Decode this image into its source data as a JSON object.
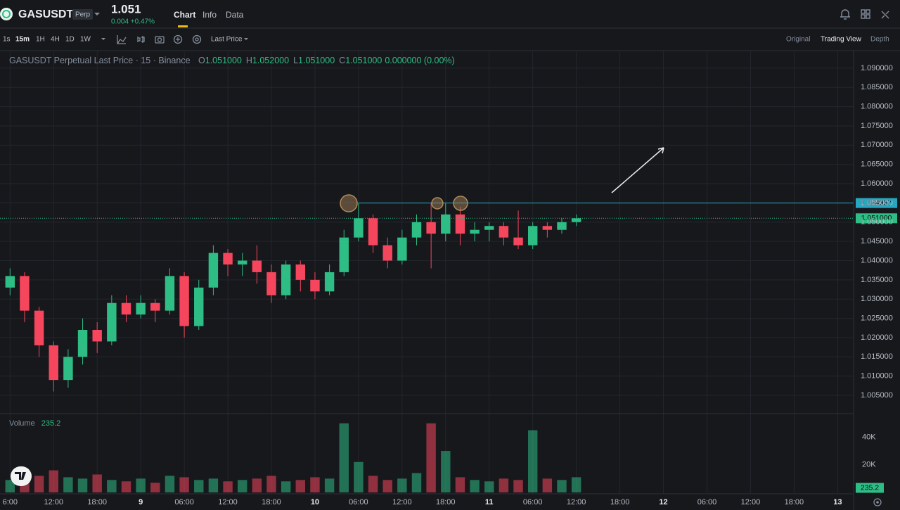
{
  "header": {
    "symbol": "GASUSDT",
    "badge": "Perp",
    "price": "1.051",
    "change": "0.004 +0.47%",
    "tabs": [
      "Chart",
      "Info",
      "Data"
    ]
  },
  "toolbar": {
    "intervals": [
      "1s",
      "15m",
      "1H",
      "4H",
      "1D",
      "1W"
    ],
    "price_type": "Last Price",
    "views": [
      "Original",
      "Trading View",
      "Depth"
    ]
  },
  "chart_data": {
    "type": "candlestick",
    "title": "GASUSDT Perpetual Last Price · 15 · Binance",
    "legend": [
      {
        "key": "O",
        "value": "1.051000"
      },
      {
        "key": "H",
        "value": "1.052000"
      },
      {
        "key": "L",
        "value": "1.051000"
      },
      {
        "key": "C",
        "value": "1.051000"
      }
    ],
    "legend_change": "0.000000 (0.00%)",
    "up_color": "#2ebd85",
    "down_color": "#f6465d",
    "grid": true,
    "x": [
      6,
      8,
      10,
      12,
      14,
      16,
      18,
      20,
      22,
      24,
      26,
      28,
      30,
      32,
      34,
      36,
      38,
      40,
      42,
      44,
      46,
      48,
      50,
      52,
      54,
      56,
      58,
      60,
      62,
      64,
      66,
      68,
      70,
      72,
      74,
      76,
      78,
      80,
      82,
      84
    ],
    "open": [
      1.033,
      1.036,
      1.027,
      1.018,
      1.009,
      1.015,
      1.022,
      1.019,
      1.029,
      1.026,
      1.029,
      1.027,
      1.036,
      1.023,
      1.033,
      1.042,
      1.039,
      1.04,
      1.037,
      1.031,
      1.039,
      1.035,
      1.032,
      1.037,
      1.046,
      1.051,
      1.044,
      1.04,
      1.046,
      1.05,
      1.047,
      1.052,
      1.047,
      1.048,
      1.049,
      1.046,
      1.044,
      1.049,
      1.048,
      1.05
    ],
    "high": [
      1.038,
      1.037,
      1.028,
      1.019,
      1.017,
      1.025,
      1.024,
      1.031,
      1.031,
      1.031,
      1.03,
      1.038,
      1.037,
      1.035,
      1.044,
      1.043,
      1.042,
      1.044,
      1.039,
      1.04,
      1.04,
      1.037,
      1.039,
      1.048,
      1.055,
      1.052,
      1.046,
      1.048,
      1.052,
      1.055,
      1.055,
      1.054,
      1.05,
      1.05,
      1.05,
      1.053,
      1.05,
      1.05,
      1.051,
      1.052
    ],
    "low": [
      1.031,
      1.024,
      1.015,
      1.006,
      1.007,
      1.013,
      1.016,
      1.018,
      1.024,
      1.025,
      1.024,
      1.026,
      1.02,
      1.022,
      1.031,
      1.036,
      1.036,
      1.034,
      1.029,
      1.03,
      1.032,
      1.03,
      1.031,
      1.036,
      1.045,
      1.042,
      1.038,
      1.039,
      1.044,
      1.038,
      1.045,
      1.044,
      1.045,
      1.045,
      1.044,
      1.043,
      1.043,
      1.046,
      1.047,
      1.049
    ],
    "close": [
      1.036,
      1.027,
      1.018,
      1.009,
      1.015,
      1.022,
      1.019,
      1.029,
      1.026,
      1.029,
      1.027,
      1.036,
      1.023,
      1.033,
      1.042,
      1.039,
      1.04,
      1.037,
      1.031,
      1.039,
      1.035,
      1.032,
      1.037,
      1.046,
      1.051,
      1.044,
      1.04,
      1.046,
      1.05,
      1.047,
      1.052,
      1.047,
      1.048,
      1.049,
      1.046,
      1.044,
      1.049,
      1.048,
      1.05,
      1.051
    ],
    "xlim": [
      5.1,
      122
    ],
    "xticks": [
      {
        "value": 6,
        "label": "6:00"
      },
      {
        "value": 12,
        "label": "12:00"
      },
      {
        "value": 18,
        "label": "18:00"
      },
      {
        "value": 24,
        "label": "9"
      },
      {
        "value": 30,
        "label": "06:00"
      },
      {
        "value": 36,
        "label": "12:00"
      },
      {
        "value": 42,
        "label": "18:00"
      },
      {
        "value": 48,
        "label": "10"
      },
      {
        "value": 54,
        "label": "06:00"
      },
      {
        "value": 60,
        "label": "12:00"
      },
      {
        "value": 66,
        "label": "18:00"
      },
      {
        "value": 72,
        "label": "11"
      },
      {
        "value": 78,
        "label": "06:00"
      },
      {
        "value": 84,
        "label": "12:00"
      },
      {
        "value": 90,
        "label": "18:00"
      },
      {
        "value": 96,
        "label": "12"
      },
      {
        "value": 102,
        "label": "06:00"
      },
      {
        "value": 108,
        "label": "12:00"
      },
      {
        "value": 114,
        "label": "18:00"
      },
      {
        "value": 120,
        "label": "13"
      }
    ],
    "ylim": [
      1.0008,
      1.094
    ],
    "yticks": [
      {
        "value": 1.005,
        "label": "1.005000"
      },
      {
        "value": 1.01,
        "label": "1.010000"
      },
      {
        "value": 1.015,
        "label": "1.015000"
      },
      {
        "value": 1.02,
        "label": "1.020000"
      },
      {
        "value": 1.025,
        "label": "1.025000"
      },
      {
        "value": 1.03,
        "label": "1.030000"
      },
      {
        "value": 1.035,
        "label": "1.035000"
      },
      {
        "value": 1.04,
        "label": "1.040000"
      },
      {
        "value": 1.045,
        "label": "1.045000"
      },
      {
        "value": 1.05,
        "label": "1.050000"
      },
      {
        "value": 1.055,
        "label": "1.055000"
      },
      {
        "value": 1.06,
        "label": "1.060000"
      },
      {
        "value": 1.065,
        "label": "1.065000"
      },
      {
        "value": 1.07,
        "label": "1.070000"
      },
      {
        "value": 1.075,
        "label": "1.075000"
      },
      {
        "value": 1.08,
        "label": "1.080000"
      },
      {
        "value": 1.085,
        "label": "1.085000"
      },
      {
        "value": 1.09,
        "label": "1.090000"
      }
    ],
    "price_lines": [
      {
        "value": 1.054957,
        "label": "1.054957",
        "color": "#26a6c0"
      },
      {
        "value": 1.051,
        "label": "1.051000",
        "color": "#2ebd85"
      }
    ],
    "volume": {
      "label": "Volume",
      "last": 235.2,
      "values": [
        9000,
        14000,
        12000,
        16000,
        11000,
        10000,
        13000,
        9000,
        8000,
        10000,
        7000,
        12000,
        11000,
        9000,
        10000,
        8000,
        9000,
        10000,
        12000,
        8000,
        9000,
        11000,
        10000,
        50000,
        22000,
        12000,
        9000,
        10000,
        14000,
        50000,
        30000,
        11000,
        9000,
        8000,
        10000,
        9000,
        45000,
        10000,
        9000,
        11000
      ],
      "ylim": [
        0,
        56000
      ],
      "yticks": [
        {
          "value": 20000,
          "label": "20K"
        },
        {
          "value": 40000,
          "label": "40K"
        }
      ]
    }
  }
}
